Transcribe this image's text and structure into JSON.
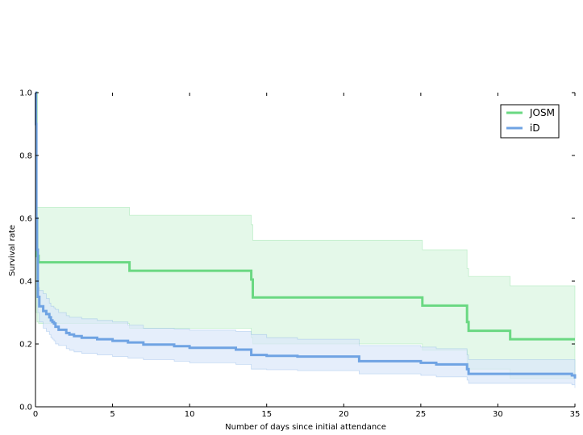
{
  "chart_data": {
    "type": "line",
    "title": "",
    "xlabel": "Number of days since initial attendance",
    "ylabel": "Survival rate",
    "xlim": [
      0,
      35
    ],
    "ylim": [
      0.0,
      1.0
    ],
    "xticks": [
      0,
      5,
      10,
      15,
      20,
      25,
      30,
      35
    ],
    "yticks": [
      0.0,
      0.2,
      0.4,
      0.6,
      0.8,
      1.0
    ],
    "xtick_labels": [
      "0",
      "5",
      "10",
      "15",
      "20",
      "25",
      "30",
      "35"
    ],
    "ytick_labels": [
      "0.0",
      "0.2",
      "0.4",
      "0.6",
      "0.8",
      "1.0"
    ],
    "grid": false,
    "legend_position": "top-right",
    "series": [
      {
        "name": "JOSM",
        "color": "#6ad882",
        "band_color": "#d9f5e0",
        "x": [
          0,
          0.05,
          0.1,
          0.2,
          6.1,
          14.0,
          14.1,
          25.1,
          28.0,
          28.1,
          30.8,
          35
        ],
        "y": [
          1.0,
          0.6,
          0.48,
          0.46,
          0.433,
          0.405,
          0.348,
          0.322,
          0.27,
          0.242,
          0.215,
          0.215
        ],
        "upper": [
          1.0,
          0.635,
          0.635,
          0.635,
          0.61,
          0.58,
          0.53,
          0.5,
          0.44,
          0.415,
          0.385,
          0.385
        ],
        "lower": [
          1.0,
          0.3,
          0.27,
          0.265,
          0.25,
          0.22,
          0.2,
          0.18,
          0.14,
          0.12,
          0.09,
          0.09
        ]
      },
      {
        "name": "iD",
        "color": "#6fa3e3",
        "band_color": "#dae7fa",
        "x": [
          0,
          0.03,
          0.06,
          0.1,
          0.15,
          0.25,
          0.5,
          0.7,
          0.9,
          1.0,
          1.1,
          1.2,
          1.3,
          1.5,
          2.0,
          2.2,
          2.5,
          3.0,
          4.0,
          5.0,
          6.0,
          7.0,
          9.0,
          10.0,
          13.0,
          14.0,
          15.0,
          17.0,
          21.0,
          25.0,
          26.0,
          28.0,
          28.1,
          34.8,
          35
        ],
        "y": [
          1.0,
          0.9,
          0.6,
          0.5,
          0.35,
          0.32,
          0.305,
          0.295,
          0.285,
          0.275,
          0.27,
          0.265,
          0.255,
          0.245,
          0.235,
          0.23,
          0.225,
          0.22,
          0.215,
          0.21,
          0.205,
          0.198,
          0.193,
          0.188,
          0.182,
          0.165,
          0.162,
          0.16,
          0.145,
          0.14,
          0.135,
          0.12,
          0.105,
          0.1,
          0.09
        ],
        "upper": [
          1.0,
          0.95,
          0.7,
          0.55,
          0.38,
          0.37,
          0.36,
          0.345,
          0.33,
          0.32,
          0.32,
          0.315,
          0.31,
          0.3,
          0.29,
          0.285,
          0.285,
          0.28,
          0.275,
          0.27,
          0.26,
          0.25,
          0.248,
          0.244,
          0.24,
          0.23,
          0.22,
          0.215,
          0.195,
          0.19,
          0.185,
          0.165,
          0.15,
          0.15,
          0.14
        ],
        "lower": [
          1.0,
          0.85,
          0.5,
          0.42,
          0.3,
          0.27,
          0.25,
          0.24,
          0.23,
          0.22,
          0.215,
          0.21,
          0.2,
          0.195,
          0.185,
          0.18,
          0.175,
          0.17,
          0.165,
          0.16,
          0.155,
          0.15,
          0.145,
          0.14,
          0.135,
          0.12,
          0.118,
          0.115,
          0.105,
          0.1,
          0.095,
          0.085,
          0.075,
          0.07,
          0.06
        ]
      }
    ]
  }
}
